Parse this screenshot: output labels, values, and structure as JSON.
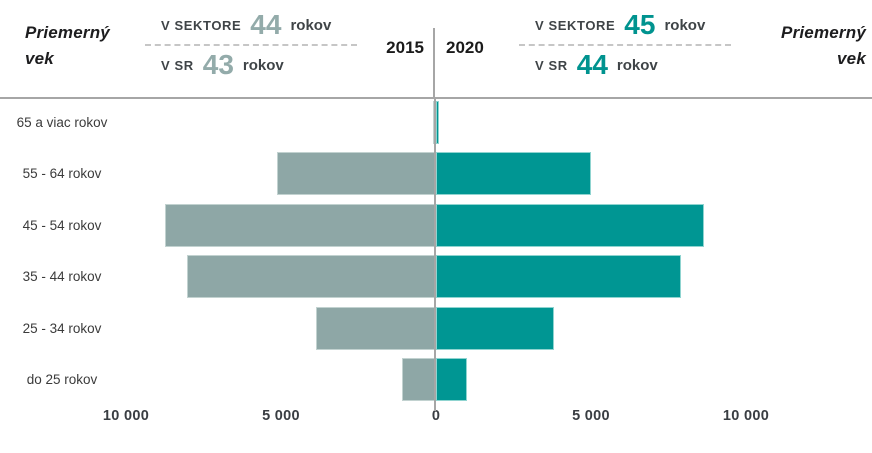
{
  "header": {
    "title_left": {
      "line1": "Priemerný",
      "line2": "vek"
    },
    "title_right": {
      "line1": "Priemerný",
      "line2": "vek"
    },
    "year_left": "2015",
    "year_right": "2020",
    "stats_2015": {
      "row1_label": "V SEKTORE",
      "row1_value": "44",
      "row1_unit": "rokov",
      "row2_label": "V SR",
      "row2_value": "43",
      "row2_unit": "rokov"
    },
    "stats_2020": {
      "row1_label": "V SEKTORE",
      "row1_value": "45",
      "row1_unit": "rokov",
      "row2_label": "V SR",
      "row2_value": "44",
      "row2_unit": "rokov"
    }
  },
  "chart_data": {
    "type": "bar",
    "variant": "horizontal-population-pyramid",
    "categories": [
      "65 a viac rokov",
      "55 - 64 rokov",
      "45 - 54 rokov",
      "35 - 44 rokov",
      "25 - 34 rokov",
      "do 25 rokov"
    ],
    "series": [
      {
        "name": "2015",
        "color": "#8ea7a6",
        "values": [
          50,
          5100,
          8700,
          8000,
          3850,
          1050
        ]
      },
      {
        "name": "2020",
        "color": "#009693",
        "values": [
          100,
          5000,
          8650,
          7900,
          3800,
          1000
        ]
      }
    ],
    "xlim": [
      0,
      10000
    ],
    "tick_labels": [
      "10 000",
      "5 000",
      "0",
      "5 000",
      "10 000"
    ],
    "grid": false,
    "legend": "years shown in header center",
    "axis_color": "#a6a6a6"
  },
  "colors": {
    "series_2015": "#8ea7a6",
    "series_2020": "#009693",
    "axis_line": "#a6a6a6",
    "text_dark": "#3f4447"
  }
}
